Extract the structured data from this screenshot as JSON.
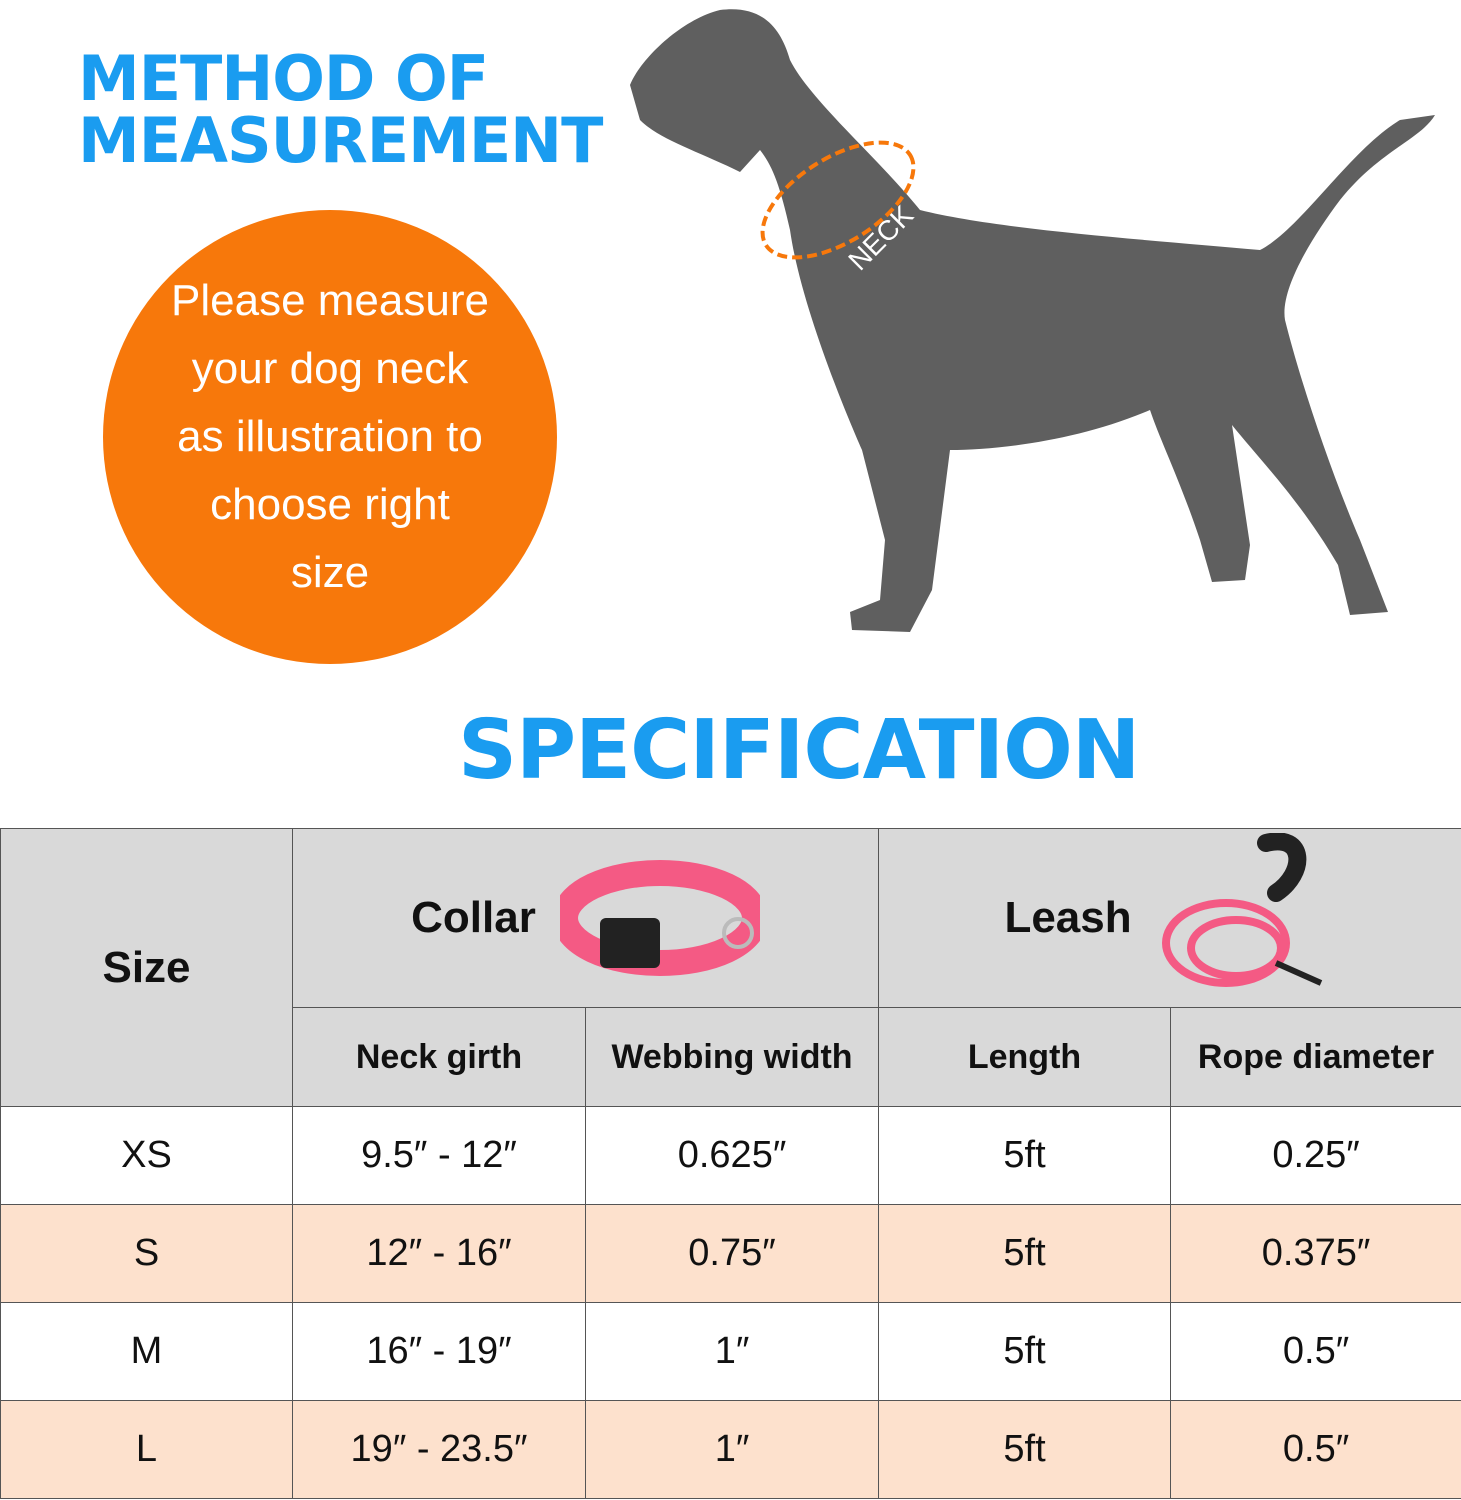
{
  "heading": {
    "line1": "METHOD OF",
    "line2": "MEASUREMENT"
  },
  "instruction": "Please measure your dog neck as illustration to choose right size",
  "illustration": {
    "label": "NECK",
    "accent": "#f7780b"
  },
  "spec_title": "SPECIFICATION",
  "colors": {
    "title": "#1a9cf0",
    "header_bg": "#d9d9d9",
    "alt_row": "#fde1cd"
  },
  "table": {
    "size_header": "Size",
    "collar_header": "Collar",
    "leash_header": "Leash",
    "columns": [
      "Neck girth",
      "Webbing width",
      "Length",
      "Rope diameter"
    ],
    "rows": [
      {
        "size": "XS",
        "neck": "9.5″ - 12″",
        "webbing": "0.625″",
        "length": "5ft",
        "rope": "0.25″"
      },
      {
        "size": "S",
        "neck": "12″ - 16″",
        "webbing": "0.75″",
        "length": "5ft",
        "rope": "0.375″"
      },
      {
        "size": "M",
        "neck": "16″ - 19″",
        "webbing": "1″",
        "length": "5ft",
        "rope": "0.5″"
      },
      {
        "size": "L",
        "neck": "19″ - 23.5″",
        "webbing": "1″",
        "length": "5ft",
        "rope": "0.5″"
      }
    ]
  }
}
